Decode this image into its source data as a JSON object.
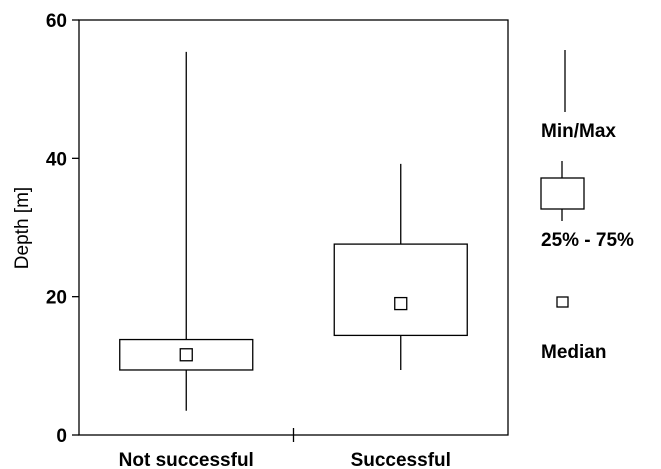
{
  "chart_data": {
    "type": "boxplot",
    "ylabel": "Depth [m]",
    "ylim": [
      0,
      60
    ],
    "yticks": [
      "0",
      "20",
      "40",
      "60"
    ],
    "categories": [
      "Not successful",
      "Successful"
    ],
    "boxes": [
      {
        "category": "Not successful",
        "min": 3.5,
        "q1": 9.4,
        "median": 11.6,
        "q3": 13.8,
        "max": 55.4
      },
      {
        "category": "Successful",
        "min": 9.4,
        "q1": 14.4,
        "median": 19.0,
        "q3": 27.6,
        "max": 39.2
      }
    ]
  },
  "legend": {
    "minmax_label": "Min/Max",
    "box_label": "25% - 75%",
    "median_label": "Median"
  }
}
